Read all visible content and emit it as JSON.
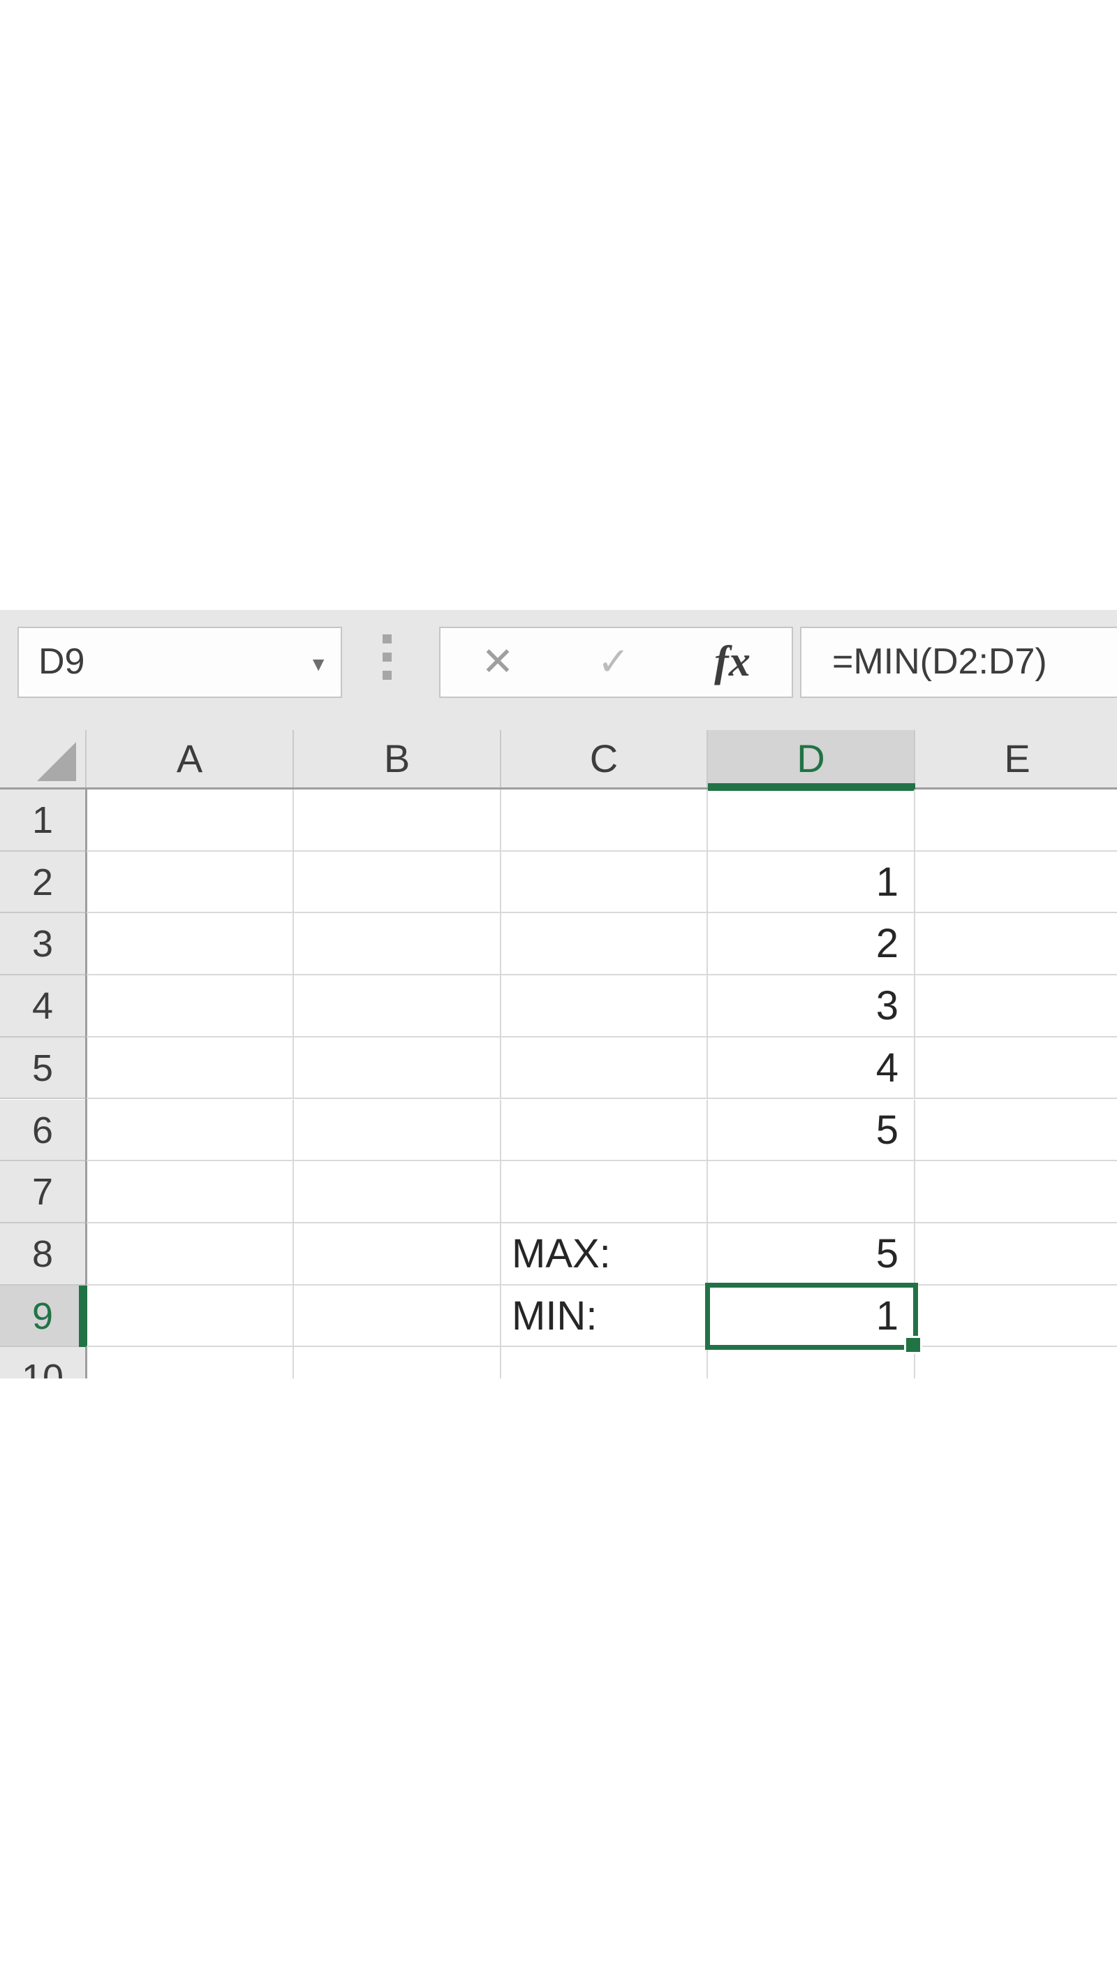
{
  "app": {
    "name": "Excel spreadsheet"
  },
  "formula_bar": {
    "name_box_value": "D9",
    "formula": "=MIN(D2:D7)",
    "icons": {
      "dropdown": "▼",
      "cancel": "✕",
      "enter": "✓",
      "function": "fx"
    }
  },
  "grid": {
    "columns": [
      "A",
      "B",
      "C",
      "D",
      "E"
    ],
    "rows": [
      "1",
      "2",
      "3",
      "4",
      "5",
      "6",
      "7",
      "8",
      "9",
      "10"
    ],
    "selection": {
      "cell": "D9",
      "column": "D",
      "row": "9"
    },
    "cells": [
      {
        "ref": "D2",
        "value": "1",
        "align": "right"
      },
      {
        "ref": "D3",
        "value": "2",
        "align": "right"
      },
      {
        "ref": "D4",
        "value": "3",
        "align": "right"
      },
      {
        "ref": "D5",
        "value": "4",
        "align": "right"
      },
      {
        "ref": "D6",
        "value": "5",
        "align": "right"
      },
      {
        "ref": "C8",
        "value": "MAX:",
        "align": "left"
      },
      {
        "ref": "D8",
        "value": "5",
        "align": "right"
      },
      {
        "ref": "C9",
        "value": "MIN:",
        "align": "left"
      },
      {
        "ref": "D9",
        "value": "1",
        "align": "right"
      }
    ]
  },
  "colors": {
    "accent_green": "#217346",
    "band_bg": "#e7e7e7",
    "selected_header_bg": "#d4d4d4",
    "gridline": "#d9d9d9",
    "header_line": "#9e9e9e",
    "text": "#262626"
  }
}
